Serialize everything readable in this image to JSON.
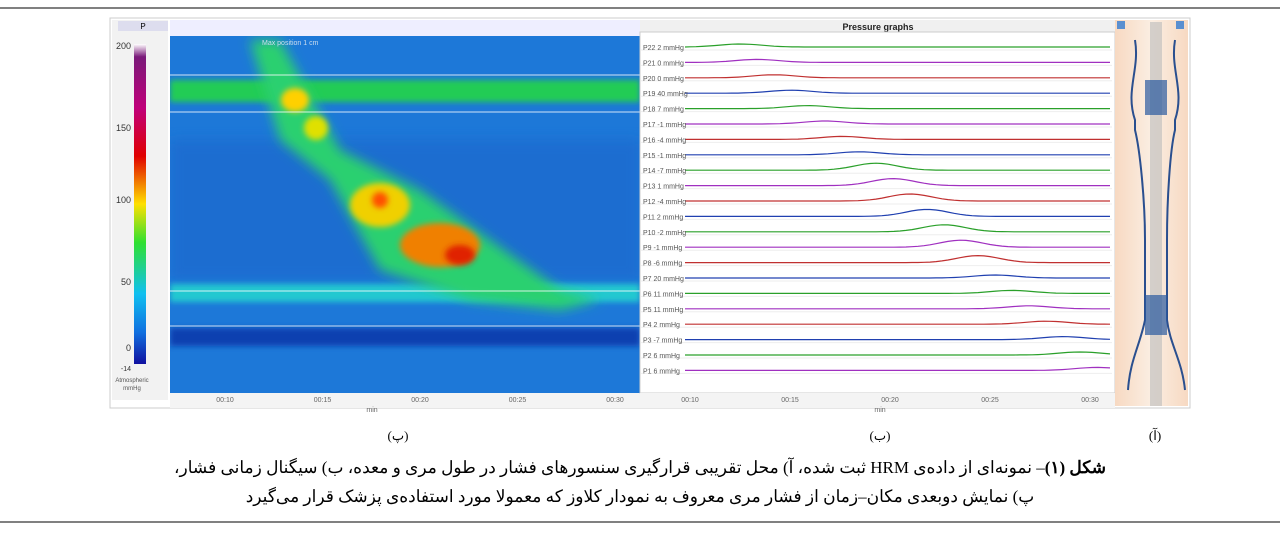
{
  "figure": {
    "colorbar": {
      "header": "P",
      "ticks": [
        "200",
        "150",
        "100",
        "50",
        "0",
        "-14"
      ],
      "unit_lines": [
        "Atmospheric",
        "mmHg"
      ]
    },
    "heatmap": {
      "inset_label": "Max position 1 cm",
      "time_ticks": [
        "00:10",
        "00:15",
        "00:20",
        "00:25",
        "00:30"
      ],
      "time_label": "min"
    },
    "pressure": {
      "title": "Pressure graphs",
      "channels": [
        "P22 2 mmHg",
        "P21 0 mmHg",
        "P20 0 mmHg",
        "P19 40 mmHg",
        "P18 7 mmHg",
        "P17 -1 mmHg",
        "P16 -4 mmHg",
        "P15 -1 mmHg",
        "P14 -7 mmHg",
        "P13 1 mmHg",
        "P12 -4 mmHg",
        "P11 2 mmHg",
        "P10 -2 mmHg",
        "P9 -1 mmHg",
        "P8 -6 mmHg",
        "P7 20 mmHg",
        "P6 11 mmHg",
        "P5 11 mmHg",
        "P4 2 mmHg",
        "P3 -7 mmHg",
        "P2 6 mmHg",
        "P1 6 mmHg"
      ],
      "time_ticks": [
        "00:10",
        "00:15",
        "00:20",
        "00:25",
        "00:30"
      ],
      "time_label": "min"
    },
    "panel_labels": [
      "(پ)",
      "(ب)",
      "(آ)"
    ]
  },
  "caption": {
    "label": "شکل (۱)",
    "line1": "– نمونه‌ای از داده‌ی HRM ثبت شده، آ) محل تقریبی قرارگیری سنسورهای فشار در طول مری و معده، ب) سیگنال زمانی فشار،",
    "line2": "پ) نمایش دوبعدی مکان–زمان از فشار مری معروف به نمودار کلاوز که معمولا مورد استفاده‌ی پزشک قرار می‌گیرد"
  }
}
